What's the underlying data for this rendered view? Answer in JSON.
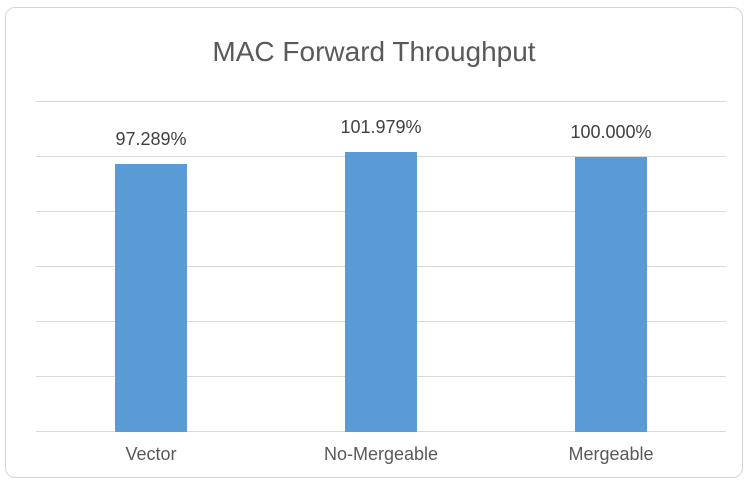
{
  "chart_data": {
    "type": "bar",
    "title": "MAC Forward Throughput",
    "categories": [
      "Vector",
      "No-Mergeable",
      "Mergeable"
    ],
    "values": [
      97.289,
      101.979,
      100.0
    ],
    "data_labels": [
      "97.289%",
      "101.979%",
      "100.000%"
    ],
    "xlabel": "",
    "ylabel": "",
    "ylim": [
      0,
      120
    ],
    "gridline_step": 20,
    "grid": "horizontal",
    "legend": "none",
    "y_axis_tick_labels_visible": false,
    "colors": {
      "bar": "#5B9BD5",
      "gridline": "#D9D9D9",
      "axis_line": "#D9D9D9",
      "title_text": "#595959",
      "data_label_text": "#404040",
      "category_text": "#595959",
      "chart_border": "#D5D5D5",
      "background": "#FFFFFF"
    }
  }
}
